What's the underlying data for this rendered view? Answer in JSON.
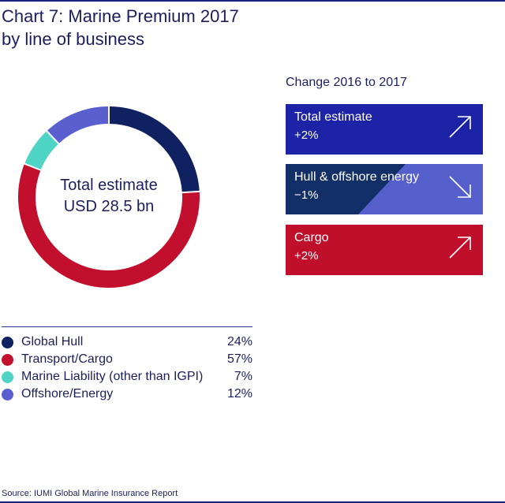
{
  "title": {
    "line1": "Chart 7: Marine Premium 2017",
    "line2": "by line of business"
  },
  "center": {
    "line1": "Total estimate",
    "line2": "USD 28.5 bn"
  },
  "chart_data": {
    "type": "pie",
    "title": "Chart 7: Marine Premium 2017 by line of business",
    "donut": true,
    "legend_position": "bottom",
    "categories": [
      "Global Hull",
      "Transport/Cargo",
      "Marine Liability (other than IGPI)",
      "Offshore/Energy"
    ],
    "values": [
      24,
      57,
      7,
      12
    ],
    "value_labels": [
      "24%",
      "57%",
      "7%",
      "12%"
    ],
    "colors": [
      "#0f2160",
      "#c30f2e",
      "#4fd3c4",
      "#5a5fcf"
    ]
  },
  "change": {
    "title": "Change 2016 to 2017",
    "cards": [
      {
        "label": "Total estimate",
        "value": "+2%",
        "direction": "up-arrow-icon"
      },
      {
        "label": "Hull & offshore energy",
        "value": "−1%",
        "direction": "down-arrow-icon"
      },
      {
        "label": "Cargo",
        "value": "+2%",
        "direction": "up-arrow-icon"
      }
    ],
    "colors": {
      "total": "#1c23a6",
      "hull_dark": "#123067",
      "hull_light": "#5660cc",
      "cargo": "#c00f2b"
    }
  },
  "source": "Source: IUMI Global Marine Insurance Report"
}
